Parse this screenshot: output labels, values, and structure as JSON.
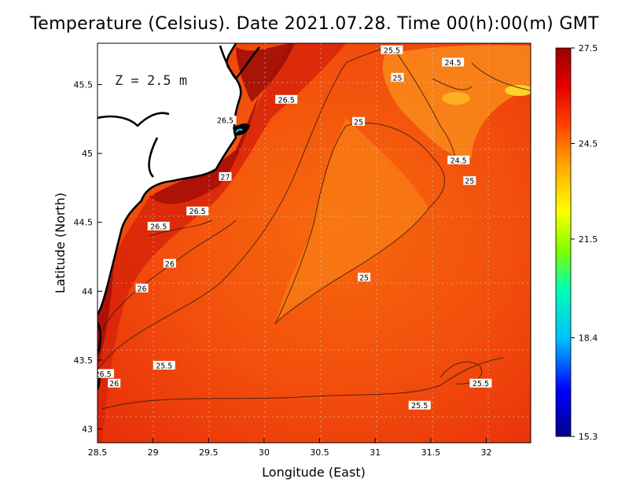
{
  "title": "Temperature (Celsius). Date 2021.07.28. Time 00(h):00(m) GMT",
  "depth_label": "Z = 2.5 m",
  "x_axis": {
    "label": "Longitude (East)",
    "ticks": [
      "28.5",
      "29",
      "29.5",
      "30",
      "30.5",
      "31",
      "31.5",
      "32"
    ],
    "range": [
      28.5,
      32.4
    ]
  },
  "y_axis": {
    "label": "Latitude (North)",
    "ticks": [
      "43",
      "43.5",
      "44",
      "44.5",
      "45",
      "45.5"
    ],
    "range": [
      42.9,
      45.8
    ]
  },
  "colorbar": {
    "ticks": [
      "27.5",
      "24.5",
      "21.5",
      "18.4",
      "15.3"
    ],
    "min": 15.3,
    "max": 27.5,
    "colors": [
      "#00008b",
      "#0000ff",
      "#00bfff",
      "#00ffb0",
      "#7fff00",
      "#ffff00",
      "#ffa500",
      "#ff4500",
      "#e60000",
      "#9b0000"
    ]
  },
  "contour_labels": [
    {
      "text": "25.5",
      "lon": 31.15,
      "lat": 45.75
    },
    {
      "text": "24.5",
      "lon": 31.7,
      "lat": 45.66
    },
    {
      "text": "25",
      "lon": 31.2,
      "lat": 45.55
    },
    {
      "text": "26.5",
      "lon": 30.2,
      "lat": 45.39
    },
    {
      "text": "26.5",
      "lon": 29.65,
      "lat": 45.24
    },
    {
      "text": "25",
      "lon": 30.85,
      "lat": 45.23
    },
    {
      "text": "24.5",
      "lon": 31.75,
      "lat": 44.95
    },
    {
      "text": "25",
      "lon": 31.85,
      "lat": 44.8
    },
    {
      "text": "27",
      "lon": 29.65,
      "lat": 44.83
    },
    {
      "text": "26.5",
      "lon": 29.4,
      "lat": 44.58
    },
    {
      "text": "26.5",
      "lon": 29.05,
      "lat": 44.47
    },
    {
      "text": "26",
      "lon": 29.15,
      "lat": 44.2
    },
    {
      "text": "26",
      "lon": 28.9,
      "lat": 44.02
    },
    {
      "text": "25",
      "lon": 30.9,
      "lat": 44.1
    },
    {
      "text": "25.5",
      "lon": 29.1,
      "lat": 43.46
    },
    {
      "text": "26.5",
      "lon": 28.55,
      "lat": 43.4
    },
    {
      "text": "26",
      "lon": 28.65,
      "lat": 43.33
    },
    {
      "text": "25.5",
      "lon": 31.95,
      "lat": 43.33
    },
    {
      "text": "25.5",
      "lon": 31.4,
      "lat": 43.17
    }
  ]
}
